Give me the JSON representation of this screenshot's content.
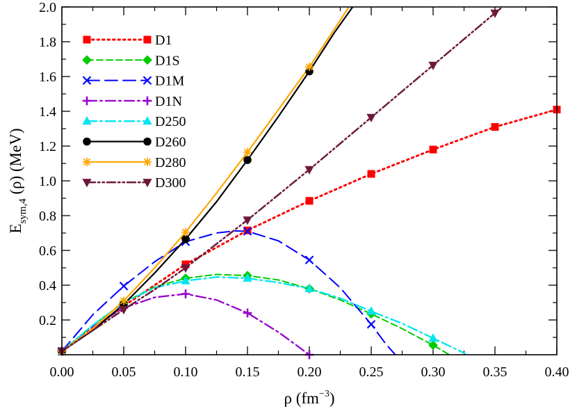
{
  "chart_data": {
    "type": "line",
    "title": "",
    "xlabel": "ρ (fm",
    "xlabel_sup": "−3",
    "xlabel_tail": ")",
    "ylabel": "E",
    "ylabel_sub": "sym,4",
    "ylabel_tail": " (ρ) (MeV)",
    "xlim": [
      0.0,
      0.4
    ],
    "ylim": [
      0.0,
      2.0
    ],
    "x_ticks": [
      0.0,
      0.05,
      0.1,
      0.15,
      0.2,
      0.25,
      0.3,
      0.35,
      0.4
    ],
    "x_tick_labels": [
      "0.00",
      "0.05",
      "0.10",
      "0.15",
      "0.20",
      "0.25",
      "0.30",
      "0.35",
      "0.40"
    ],
    "y_ticks": [
      0.2,
      0.4,
      0.6,
      0.8,
      1.0,
      1.2,
      1.4,
      1.6,
      1.8,
      2.0
    ],
    "y_tick_labels": [
      "0.2",
      "0.4",
      "0.6",
      "0.8",
      "1.0",
      "1.2",
      "1.4",
      "1.6",
      "1.8",
      "2.0"
    ],
    "legend_position": "top-left",
    "series": [
      {
        "name": "D1",
        "color": "#ff0000",
        "dash": "dot",
        "marker": "square",
        "markers": [
          [
            0.0,
            0.02
          ],
          [
            0.1,
            0.52
          ],
          [
            0.15,
            0.715
          ],
          [
            0.2,
            0.885
          ],
          [
            0.25,
            1.04
          ],
          [
            0.3,
            1.18
          ],
          [
            0.35,
            1.31
          ],
          [
            0.4,
            1.41
          ]
        ],
        "line": [
          [
            0.0,
            0.02
          ],
          [
            0.05,
            0.28
          ],
          [
            0.1,
            0.52
          ],
          [
            0.15,
            0.715
          ],
          [
            0.2,
            0.885
          ],
          [
            0.25,
            1.04
          ],
          [
            0.3,
            1.18
          ],
          [
            0.35,
            1.31
          ],
          [
            0.4,
            1.41
          ]
        ]
      },
      {
        "name": "D1S",
        "color": "#00cc00",
        "dash": "dash",
        "marker": "diamond",
        "markers": [
          [
            0.0,
            0.02
          ],
          [
            0.05,
            0.3
          ],
          [
            0.1,
            0.44
          ],
          [
            0.15,
            0.455
          ],
          [
            0.2,
            0.38
          ],
          [
            0.25,
            0.235
          ],
          [
            0.3,
            0.055
          ]
        ],
        "line": [
          [
            0.0,
            0.02
          ],
          [
            0.025,
            0.17
          ],
          [
            0.05,
            0.3
          ],
          [
            0.075,
            0.39
          ],
          [
            0.1,
            0.44
          ],
          [
            0.125,
            0.462
          ],
          [
            0.15,
            0.455
          ],
          [
            0.175,
            0.43
          ],
          [
            0.2,
            0.38
          ],
          [
            0.225,
            0.315
          ],
          [
            0.25,
            0.235
          ],
          [
            0.275,
            0.15
          ],
          [
            0.3,
            0.055
          ],
          [
            0.318,
            -0.02
          ]
        ]
      },
      {
        "name": "D1M",
        "color": "#0000ff",
        "dash": "longdash",
        "marker": "x",
        "markers": [
          [
            0.0,
            0.02
          ],
          [
            0.05,
            0.395
          ],
          [
            0.1,
            0.65
          ],
          [
            0.15,
            0.71
          ],
          [
            0.2,
            0.545
          ],
          [
            0.25,
            0.175
          ]
        ],
        "line": [
          [
            0.0,
            0.02
          ],
          [
            0.025,
            0.23
          ],
          [
            0.05,
            0.395
          ],
          [
            0.075,
            0.535
          ],
          [
            0.1,
            0.65
          ],
          [
            0.125,
            0.7
          ],
          [
            0.14,
            0.712
          ],
          [
            0.15,
            0.71
          ],
          [
            0.175,
            0.655
          ],
          [
            0.2,
            0.545
          ],
          [
            0.225,
            0.385
          ],
          [
            0.25,
            0.175
          ],
          [
            0.262,
            0.06
          ],
          [
            0.272,
            -0.02
          ]
        ]
      },
      {
        "name": "D1N",
        "color": "#9900cc",
        "dash": "dashdot",
        "marker": "plus",
        "markers": [
          [
            0.0,
            0.02
          ],
          [
            0.05,
            0.27
          ],
          [
            0.1,
            0.35
          ],
          [
            0.15,
            0.24
          ],
          [
            0.2,
            0.0
          ]
        ],
        "line": [
          [
            0.0,
            0.02
          ],
          [
            0.025,
            0.16
          ],
          [
            0.05,
            0.27
          ],
          [
            0.075,
            0.33
          ],
          [
            0.1,
            0.35
          ],
          [
            0.125,
            0.315
          ],
          [
            0.15,
            0.24
          ],
          [
            0.175,
            0.13
          ],
          [
            0.2,
            0.0
          ],
          [
            0.205,
            -0.02
          ]
        ]
      },
      {
        "name": "D250",
        "color": "#00e5ee",
        "dash": "dashdot",
        "marker": "triangle-up",
        "markers": [
          [
            0.0,
            0.02
          ],
          [
            0.05,
            0.3
          ],
          [
            0.1,
            0.425
          ],
          [
            0.15,
            0.44
          ],
          [
            0.2,
            0.38
          ],
          [
            0.25,
            0.25
          ],
          [
            0.3,
            0.095
          ]
        ],
        "line": [
          [
            0.0,
            0.02
          ],
          [
            0.025,
            0.17
          ],
          [
            0.05,
            0.3
          ],
          [
            0.075,
            0.385
          ],
          [
            0.1,
            0.425
          ],
          [
            0.125,
            0.447
          ],
          [
            0.15,
            0.44
          ],
          [
            0.175,
            0.415
          ],
          [
            0.2,
            0.38
          ],
          [
            0.225,
            0.325
          ],
          [
            0.25,
            0.25
          ],
          [
            0.275,
            0.18
          ],
          [
            0.3,
            0.095
          ],
          [
            0.325,
            0.01
          ],
          [
            0.33,
            -0.02
          ]
        ]
      },
      {
        "name": "D260",
        "color": "#000000",
        "dash": "solid",
        "marker": "circle",
        "markers": [
          [
            0.0,
            0.02
          ],
          [
            0.05,
            0.29
          ],
          [
            0.1,
            0.665
          ],
          [
            0.15,
            1.12
          ],
          [
            0.2,
            1.63
          ]
        ],
        "line": [
          [
            0.0,
            0.02
          ],
          [
            0.025,
            0.14
          ],
          [
            0.05,
            0.29
          ],
          [
            0.075,
            0.47
          ],
          [
            0.1,
            0.665
          ],
          [
            0.125,
            0.88
          ],
          [
            0.15,
            1.12
          ],
          [
            0.175,
            1.37
          ],
          [
            0.2,
            1.63
          ],
          [
            0.22,
            1.85
          ],
          [
            0.235,
            2.0
          ]
        ]
      },
      {
        "name": "D280",
        "color": "#ffa500",
        "dash": "solid",
        "marker": "asterisk",
        "markers": [
          [
            0.0,
            0.02
          ],
          [
            0.05,
            0.31
          ],
          [
            0.1,
            0.705
          ],
          [
            0.15,
            1.165
          ],
          [
            0.2,
            1.655
          ]
        ],
        "line": [
          [
            0.0,
            0.02
          ],
          [
            0.025,
            0.15
          ],
          [
            0.05,
            0.31
          ],
          [
            0.075,
            0.5
          ],
          [
            0.1,
            0.705
          ],
          [
            0.125,
            0.93
          ],
          [
            0.15,
            1.165
          ],
          [
            0.175,
            1.41
          ],
          [
            0.2,
            1.655
          ],
          [
            0.22,
            1.87
          ],
          [
            0.232,
            2.0
          ]
        ]
      },
      {
        "name": "D300",
        "color": "#6b1a3c",
        "dash": "dashdotdot",
        "marker": "triangle-down",
        "markers": [
          [
            0.0,
            0.02
          ],
          [
            0.05,
            0.26
          ],
          [
            0.1,
            0.5
          ],
          [
            0.15,
            0.775
          ],
          [
            0.2,
            1.065
          ],
          [
            0.25,
            1.365
          ],
          [
            0.3,
            1.665
          ],
          [
            0.35,
            1.965
          ]
        ],
        "line": [
          [
            0.0,
            0.02
          ],
          [
            0.025,
            0.14
          ],
          [
            0.05,
            0.26
          ],
          [
            0.075,
            0.375
          ],
          [
            0.1,
            0.5
          ],
          [
            0.15,
            0.775
          ],
          [
            0.2,
            1.065
          ],
          [
            0.25,
            1.365
          ],
          [
            0.3,
            1.665
          ],
          [
            0.35,
            1.965
          ],
          [
            0.356,
            2.0
          ]
        ]
      }
    ]
  }
}
